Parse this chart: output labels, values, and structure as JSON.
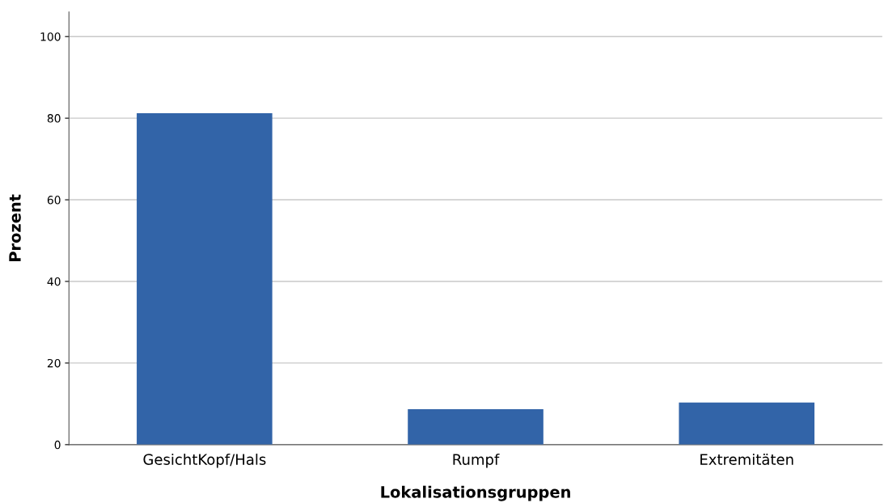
{
  "chart_data": {
    "type": "bar",
    "xlabel": "Lokalisationsgruppen",
    "ylabel": "Prozent",
    "categories": [
      "GesichtKopf/Hals",
      "Rumpf",
      "Extremitäten"
    ],
    "values": [
      81.2,
      8.7,
      10.3
    ],
    "color": "#3264a8",
    "ylim": [
      0,
      106
    ],
    "yticks": [
      0,
      20,
      40,
      60,
      80,
      100
    ],
    "grid": "y",
    "legend": false
  }
}
